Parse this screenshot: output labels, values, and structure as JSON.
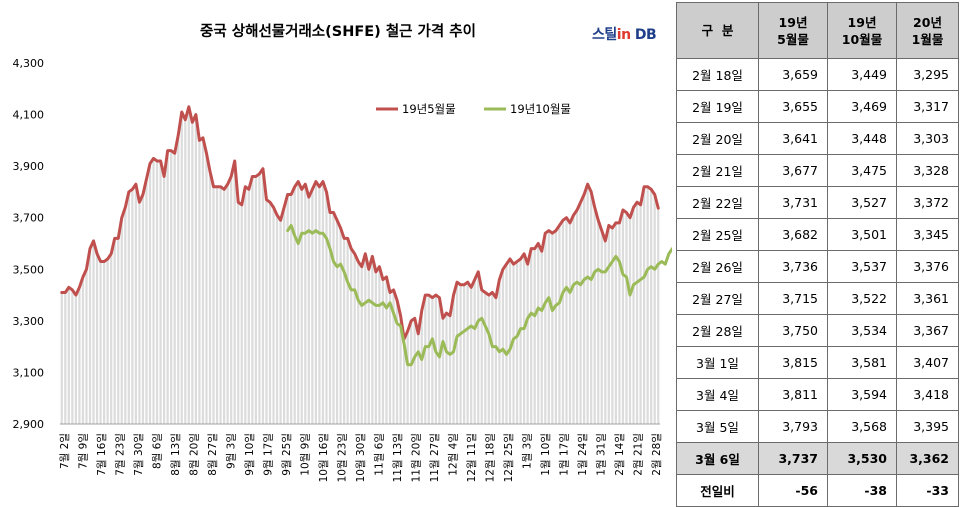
{
  "chart": {
    "title": "중국 상해선물거래소(SHFE)  철근 가격 추이",
    "logo": {
      "part1": "스틸",
      "part2": "in",
      "part3": " DB"
    }
  },
  "colors": {
    "series_may": "#c0504d",
    "series_oct": "#9bbb59",
    "bar_fill": "#dcdcdc",
    "header_bg": "#cdcdcd",
    "highlight_bg": "#d9d9d9"
  },
  "chart_data": {
    "type": "line",
    "title": "중국 상해선물거래소(SHFE)  철근 가격 추이",
    "xlabel": "",
    "ylabel": "",
    "ylim": [
      2900,
      4300
    ],
    "yticks": [
      "2,900",
      "3,100",
      "3,300",
      "3,500",
      "3,700",
      "3,900",
      "4,100",
      "4,300"
    ],
    "grid": false,
    "legend": "top-center",
    "x_tick_labels": [
      "7월 2일",
      "7월 9일",
      "7월 16일",
      "7월 23일",
      "7월 30일",
      "8월 6일",
      "8월 13일",
      "8월 20일",
      "8월 27일",
      "9월 3일",
      "9월 10일",
      "9월 17일",
      "9월 25일",
      "10월 9일",
      "10월 16일",
      "10월 23일",
      "10월 30일",
      "11월 6일",
      "11월 13일",
      "11월 20일",
      "11월 27일",
      "12월 4일",
      "12월 11일",
      "12월 18일",
      "12월 25일",
      "1월 3일",
      "1월 10일",
      "1월 17일",
      "1월 24일",
      "1월 31일",
      "2월 14일",
      "2월 21일",
      "2월 28일"
    ],
    "series": [
      {
        "name": "19년5월물",
        "start_index": 0,
        "values": [
          3410,
          3410,
          3430,
          3420,
          3400,
          3430,
          3470,
          3500,
          3580,
          3610,
          3560,
          3530,
          3530,
          3540,
          3560,
          3620,
          3620,
          3700,
          3740,
          3800,
          3810,
          3830,
          3760,
          3790,
          3850,
          3910,
          3930,
          3920,
          3920,
          3860,
          3960,
          3960,
          3950,
          4020,
          4110,
          4080,
          4130,
          4070,
          4100,
          4000,
          4010,
          3950,
          3880,
          3820,
          3820,
          3820,
          3810,
          3830,
          3860,
          3920,
          3760,
          3750,
          3820,
          3810,
          3860,
          3860,
          3870,
          3890,
          3770,
          3760,
          3740,
          3710,
          3690,
          3740,
          3790,
          3790,
          3820,
          3840,
          3810,
          3830,
          3780,
          3810,
          3840,
          3820,
          3840,
          3800,
          3720,
          3720,
          3690,
          3660,
          3620,
          3620,
          3580,
          3560,
          3530,
          3510,
          3560,
          3500,
          3550,
          3490,
          3510,
          3460,
          3470,
          3410,
          3420,
          3380,
          3320,
          3230,
          3260,
          3300,
          3310,
          3250,
          3340,
          3400,
          3400,
          3390,
          3400,
          3390,
          3310,
          3330,
          3320,
          3400,
          3450,
          3440,
          3440,
          3450,
          3430,
          3460,
          3490,
          3420,
          3410,
          3400,
          3410,
          3390,
          3460,
          3500,
          3520,
          3540,
          3520,
          3530,
          3540,
          3560,
          3520,
          3580,
          3580,
          3600,
          3570,
          3640,
          3650,
          3640,
          3650,
          3670,
          3690,
          3700,
          3680,
          3710,
          3730,
          3760,
          3790,
          3830,
          3800,
          3740,
          3690,
          3650,
          3610,
          3670,
          3660,
          3680,
          3680,
          3730,
          3720,
          3700,
          3740,
          3760,
          3750,
          3820,
          3820,
          3810,
          3790,
          3737
        ]
      },
      {
        "name": "19년10월물",
        "start_index": 64,
        "values": [
          3650,
          3670,
          3630,
          3600,
          3640,
          3640,
          3650,
          3640,
          3650,
          3640,
          3640,
          3620,
          3580,
          3530,
          3510,
          3520,
          3490,
          3450,
          3420,
          3420,
          3380,
          3360,
          3370,
          3380,
          3370,
          3360,
          3360,
          3370,
          3350,
          3370,
          3330,
          3290,
          3280,
          3210,
          3130,
          3130,
          3160,
          3180,
          3150,
          3200,
          3200,
          3230,
          3180,
          3160,
          3220,
          3180,
          3170,
          3180,
          3240,
          3250,
          3260,
          3270,
          3280,
          3270,
          3300,
          3310,
          3280,
          3250,
          3200,
          3200,
          3180,
          3190,
          3170,
          3190,
          3230,
          3240,
          3270,
          3270,
          3310,
          3330,
          3320,
          3350,
          3340,
          3370,
          3390,
          3340,
          3360,
          3370,
          3410,
          3430,
          3410,
          3440,
          3450,
          3440,
          3460,
          3470,
          3460,
          3490,
          3500,
          3490,
          3490,
          3510,
          3530,
          3550,
          3530,
          3480,
          3470,
          3400,
          3440,
          3450,
          3460,
          3470,
          3500,
          3510,
          3500,
          3520,
          3530,
          3520,
          3560,
          3580,
          3590,
          3570,
          3530
        ]
      }
    ]
  },
  "table": {
    "headers": [
      "구  분",
      "19년\n5월물",
      "19년\n10월물",
      "20년\n1월물"
    ],
    "rows": [
      [
        "2월 18일",
        "3,659",
        "3,449",
        "3,295"
      ],
      [
        "2월 19일",
        "3,655",
        "3,469",
        "3,317"
      ],
      [
        "2월 20일",
        "3,641",
        "3,448",
        "3,303"
      ],
      [
        "2월 21일",
        "3,677",
        "3,475",
        "3,328"
      ],
      [
        "2월 22일",
        "3,731",
        "3,527",
        "3,372"
      ],
      [
        "2월 25일",
        "3,682",
        "3,501",
        "3,345"
      ],
      [
        "2월 26일",
        "3,736",
        "3,537",
        "3,376"
      ],
      [
        "2월 27일",
        "3,715",
        "3,522",
        "3,361"
      ],
      [
        "2월 28일",
        "3,750",
        "3,534",
        "3,367"
      ],
      [
        "3월 1일",
        "3,815",
        "3,581",
        "3,407"
      ],
      [
        "3월 4일",
        "3,811",
        "3,594",
        "3,418"
      ],
      [
        "3월 5일",
        "3,793",
        "3,568",
        "3,395"
      ]
    ],
    "highlight_row": [
      "3월 6일",
      "3,737",
      "3,530",
      "3,362"
    ],
    "diff_row": [
      "전일비",
      "-56",
      "-38",
      "-33"
    ]
  }
}
